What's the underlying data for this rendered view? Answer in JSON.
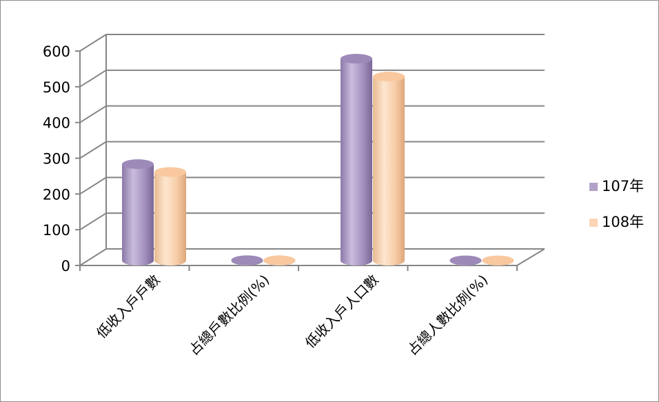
{
  "chart_data": {
    "type": "bar",
    "categories": [
      "低收入戶戶數",
      "占總戶數比例(%)",
      "低收入戶人口數",
      "占總人數比例(%)"
    ],
    "series": [
      {
        "name": "107年",
        "values": [
          270,
          1.2,
          565,
          0.8
        ],
        "color": "#b3a2c7"
      },
      {
        "name": "108年",
        "values": [
          248,
          1.1,
          515,
          0.7
        ],
        "color": "#fcd5b5"
      }
    ],
    "ylim": [
      0,
      600
    ],
    "yticks": [
      "0",
      "100",
      "200",
      "300",
      "400",
      "500",
      "600"
    ],
    "grid": true,
    "legend_position": "right",
    "style": "3d-cylinder"
  }
}
